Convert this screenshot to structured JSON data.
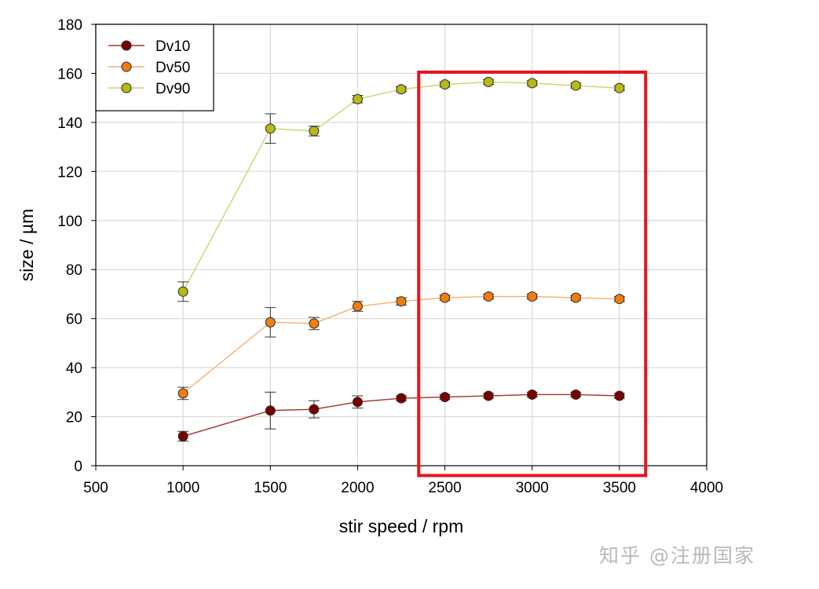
{
  "chart_data": {
    "type": "line",
    "xlabel": "stir speed / rpm",
    "ylabel": "size / µm",
    "xlim": [
      500,
      4000
    ],
    "ylim": [
      0,
      180
    ],
    "x_ticks": [
      500,
      1000,
      1500,
      2000,
      2500,
      3000,
      3500,
      4000
    ],
    "y_ticks": [
      0,
      20,
      40,
      60,
      80,
      100,
      120,
      140,
      160,
      180
    ],
    "grid": true,
    "legend_position": "top-left",
    "error_bars": true,
    "series": [
      {
        "name": "Dv10",
        "color": "#7a0000",
        "line_color": "#a0322e",
        "x": [
          1000,
          1500,
          1750,
          2000,
          2250,
          2500,
          2750,
          3000,
          3250,
          3500
        ],
        "y": [
          12,
          22.5,
          23,
          26,
          27.5,
          28,
          28.5,
          29,
          29,
          28.5
        ],
        "err": [
          2,
          7.5,
          3.5,
          2.5,
          1,
          1,
          1,
          1,
          1,
          1
        ]
      },
      {
        "name": "Dv50",
        "color": "#f07d10",
        "line_color": "#f5b070",
        "x": [
          1000,
          1500,
          1750,
          2000,
          2250,
          2500,
          2750,
          3000,
          3250,
          3500
        ],
        "y": [
          29.5,
          58.5,
          58,
          65,
          67,
          68.5,
          69,
          69,
          68.5,
          68
        ],
        "err": [
          2.5,
          6,
          2.5,
          2,
          1.5,
          1,
          1,
          1,
          1,
          1
        ]
      },
      {
        "name": "Dv90",
        "color": "#b8b818",
        "line_color": "#cdd46a",
        "x": [
          1000,
          1500,
          1750,
          2000,
          2250,
          2500,
          2750,
          3000,
          3250,
          3500
        ],
        "y": [
          71,
          137.5,
          136.5,
          149.5,
          153.5,
          155.5,
          156.5,
          156,
          155,
          154
        ],
        "err": [
          4,
          6,
          2,
          1.5,
          1,
          1,
          1,
          1,
          1,
          1
        ]
      }
    ],
    "highlight_box": {
      "x_range": [
        2350,
        3650
      ],
      "y_range": [
        -4,
        160.5
      ],
      "color": "#e8141c"
    }
  },
  "watermark": "知乎 @注册国家"
}
